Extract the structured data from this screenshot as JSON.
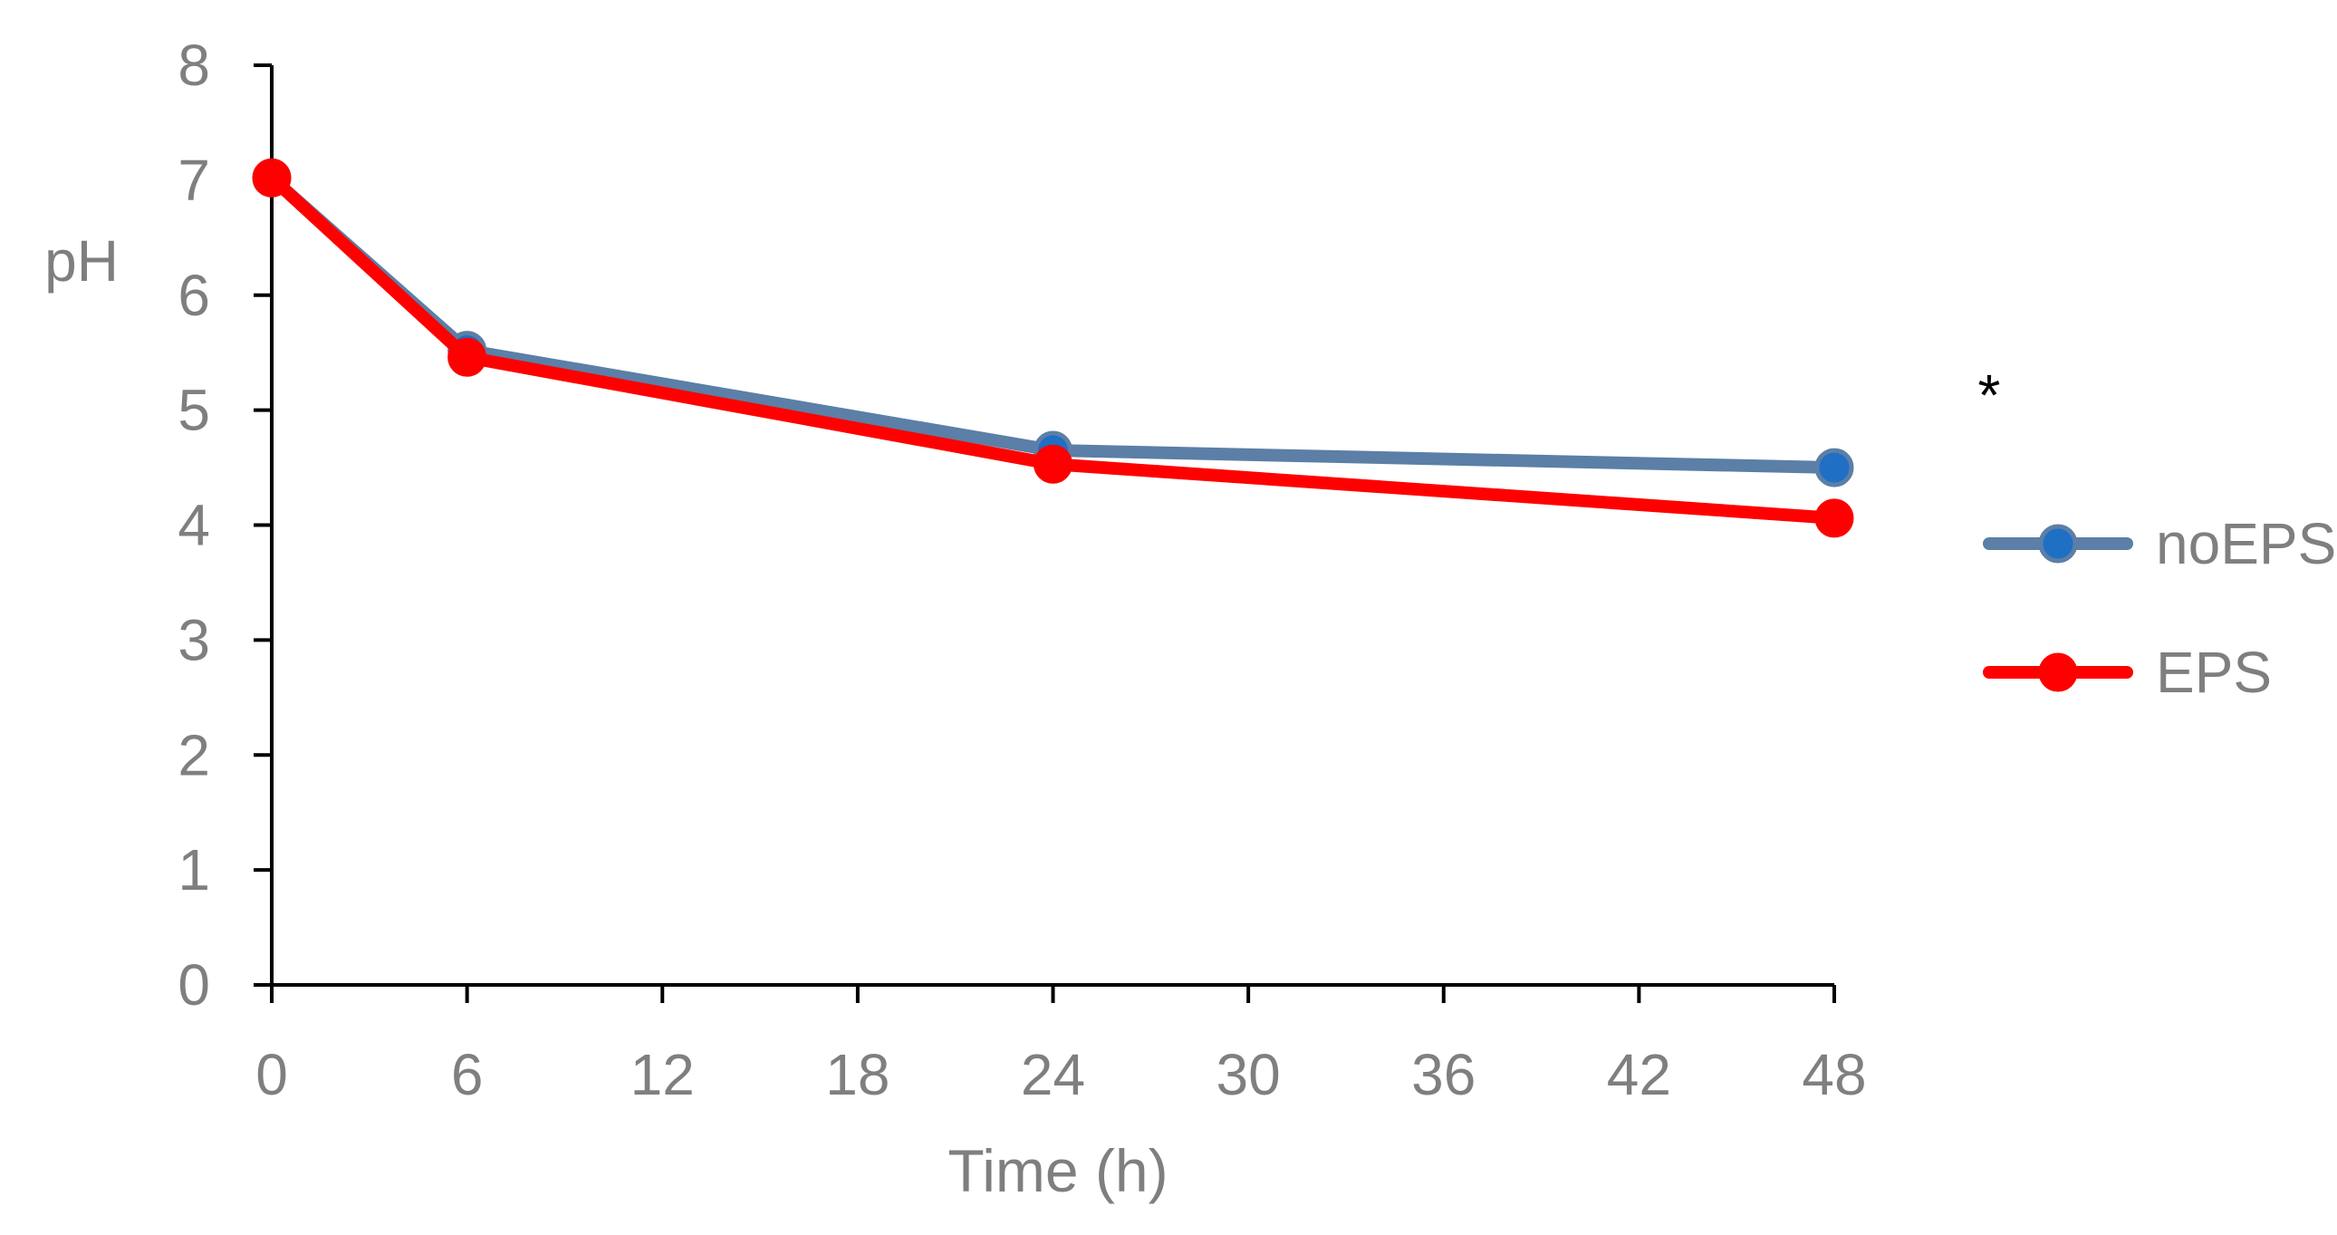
{
  "chart_data": {
    "type": "line",
    "title": "",
    "xlabel": "Time (h)",
    "ylabel": "pH",
    "xlim": [
      0,
      48
    ],
    "ylim": [
      0,
      8
    ],
    "x_ticks": [
      "0",
      "6",
      "12",
      "18",
      "24",
      "30",
      "36",
      "42",
      "48"
    ],
    "y_ticks": [
      "0",
      "1",
      "2",
      "3",
      "4",
      "5",
      "6",
      "7",
      "8"
    ],
    "grid": false,
    "legend_position": "right",
    "annotation": "*",
    "x": [
      0,
      6,
      24,
      48
    ],
    "series": [
      {
        "name": "noEPS",
        "values": [
          7.02,
          5.52,
          4.65,
          4.5
        ],
        "line_color": "#5B7FA6",
        "marker_color": "#1F6FC5"
      },
      {
        "name": "EPS",
        "values": [
          7.02,
          5.46,
          4.53,
          4.06
        ],
        "line_color": "#FF0000",
        "marker_color": "#FF0000"
      }
    ],
    "colors": {
      "axis": "#000000",
      "tick_text": "#7F7F7F"
    }
  }
}
